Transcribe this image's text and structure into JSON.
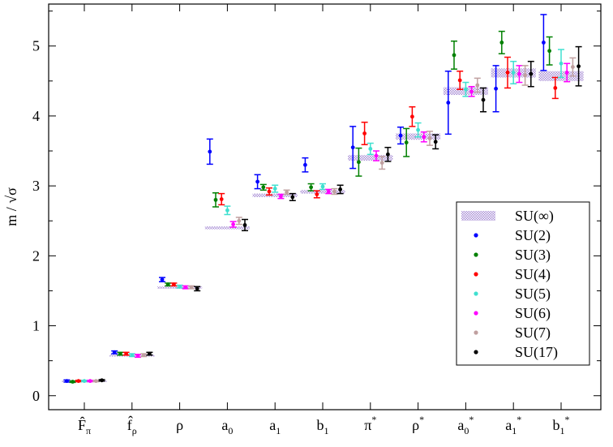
{
  "chart_data": {
    "type": "scatter",
    "title": "",
    "xlabel": "",
    "ylabel": "m / √σ",
    "ylim": [
      -0.2,
      5.6
    ],
    "yticks": [
      0,
      1,
      2,
      3,
      4,
      5
    ],
    "grid": false,
    "legend_position": "right",
    "categories": [
      {
        "base": "F̂",
        "sub": "π",
        "sup": ""
      },
      {
        "base": "f̂",
        "sub": "ρ",
        "sup": ""
      },
      {
        "base": "ρ",
        "sub": "",
        "sup": ""
      },
      {
        "base": "a",
        "sub": "0",
        "sup": ""
      },
      {
        "base": "a",
        "sub": "1",
        "sup": ""
      },
      {
        "base": "b",
        "sub": "1",
        "sup": ""
      },
      {
        "base": "π",
        "sub": "",
        "sup": "*"
      },
      {
        "base": "ρ",
        "sub": "",
        "sup": "*"
      },
      {
        "base": "a",
        "sub": "0",
        "sup": "*"
      },
      {
        "base": "a",
        "sub": "1",
        "sup": "*"
      },
      {
        "base": "b",
        "sub": "1",
        "sup": "*"
      }
    ],
    "band": {
      "name": "SU(∞)",
      "color": "#a98fd6",
      "ranges": [
        [
          0.2,
          0.22
        ],
        [
          0.56,
          0.59
        ],
        [
          1.53,
          1.56
        ],
        [
          2.38,
          2.42
        ],
        [
          2.84,
          2.89
        ],
        [
          2.89,
          2.94
        ],
        [
          3.36,
          3.44
        ],
        [
          3.66,
          3.75
        ],
        [
          4.3,
          4.41
        ],
        [
          4.55,
          4.68
        ],
        [
          4.5,
          4.64
        ]
      ]
    },
    "series": [
      {
        "name": "SU(2)",
        "color": "#0000ff",
        "values": [
          0.21,
          0.62,
          1.66,
          3.49,
          3.06,
          3.3,
          3.55,
          3.72,
          4.19,
          4.39,
          5.05
        ],
        "errors": [
          0.015,
          0.02,
          0.03,
          0.18,
          0.1,
          0.1,
          0.3,
          0.12,
          0.45,
          0.33,
          0.4
        ]
      },
      {
        "name": "SU(3)",
        "color": "#008000",
        "values": [
          0.2,
          0.6,
          1.59,
          2.8,
          2.98,
          2.98,
          3.34,
          3.62,
          4.87,
          5.05,
          4.93
        ],
        "errors": [
          0.01,
          0.02,
          0.02,
          0.1,
          0.04,
          0.05,
          0.2,
          0.2,
          0.2,
          0.16,
          0.2
        ]
      },
      {
        "name": "SU(4)",
        "color": "#ff0000",
        "values": [
          0.21,
          0.6,
          1.59,
          2.81,
          2.92,
          2.88,
          3.75,
          3.99,
          4.51,
          4.62,
          4.4
        ],
        "errors": [
          0.01,
          0.02,
          0.02,
          0.08,
          0.05,
          0.05,
          0.16,
          0.14,
          0.13,
          0.22,
          0.15
        ]
      },
      {
        "name": "SU(5)",
        "color": "#40e0d0",
        "values": [
          0.21,
          0.58,
          1.56,
          2.65,
          2.96,
          2.99,
          3.53,
          3.8,
          4.38,
          4.62,
          4.75
        ],
        "errors": [
          0.01,
          0.02,
          0.02,
          0.06,
          0.05,
          0.04,
          0.08,
          0.1,
          0.1,
          0.16,
          0.2
        ]
      },
      {
        "name": "SU(6)",
        "color": "#ff00ff",
        "values": [
          0.21,
          0.57,
          1.55,
          2.45,
          2.85,
          2.92,
          3.43,
          3.7,
          4.35,
          4.6,
          4.62
        ],
        "errors": [
          0.01,
          0.02,
          0.02,
          0.04,
          0.03,
          0.03,
          0.07,
          0.07,
          0.07,
          0.12,
          0.13
        ]
      },
      {
        "name": "SU(7)",
        "color": "#c0a0a0",
        "values": [
          0.21,
          0.58,
          1.55,
          2.5,
          2.91,
          2.92,
          3.33,
          3.68,
          4.44,
          4.58,
          4.7
        ],
        "errors": [
          0.01,
          0.02,
          0.02,
          0.05,
          0.03,
          0.04,
          0.09,
          0.1,
          0.1,
          0.14,
          0.13
        ]
      },
      {
        "name": "SU(17)",
        "color": "#000000",
        "values": [
          0.22,
          0.6,
          1.53,
          2.44,
          2.84,
          2.95,
          3.45,
          3.63,
          4.23,
          4.6,
          4.71
        ],
        "errors": [
          0.01,
          0.02,
          0.03,
          0.08,
          0.05,
          0.06,
          0.1,
          0.1,
          0.17,
          0.18,
          0.28
        ]
      }
    ]
  }
}
